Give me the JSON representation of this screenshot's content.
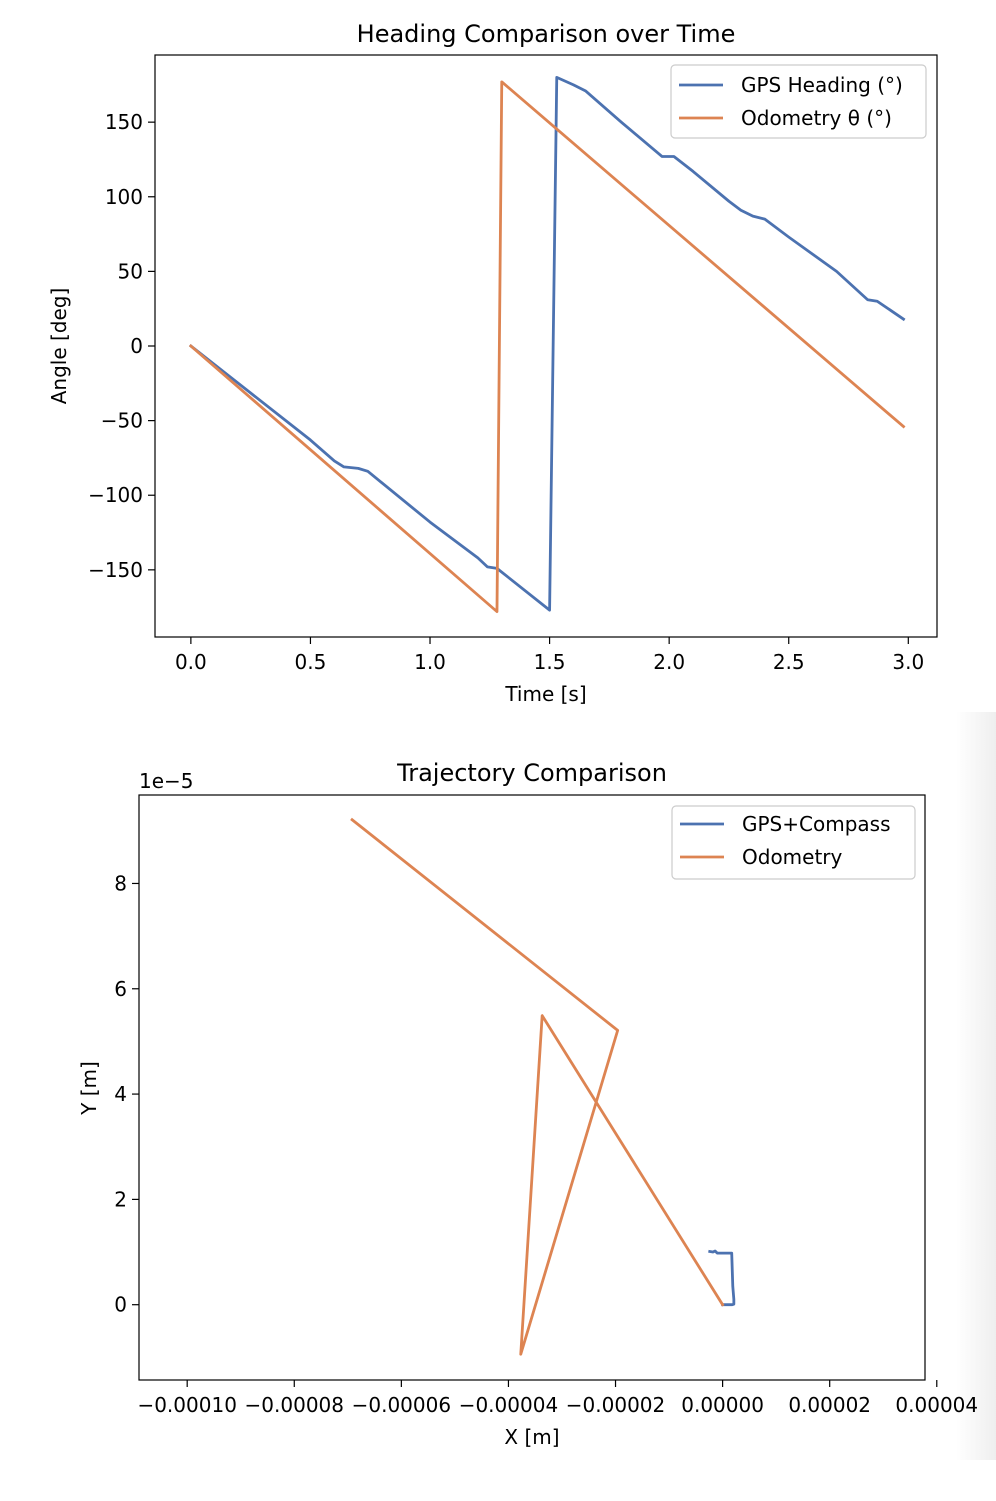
{
  "chart_data": [
    {
      "type": "line",
      "title": "Heading Comparison over Time",
      "xlabel": "Time [s]",
      "ylabel": "Angle [deg]",
      "xlim": [
        -0.15,
        3.12
      ],
      "ylim": [
        -195,
        195
      ],
      "xticks": [
        0.0,
        0.5,
        1.0,
        1.5,
        2.0,
        2.5,
        3.0
      ],
      "xtick_labels": [
        "0.0",
        "0.5",
        "1.0",
        "1.5",
        "2.0",
        "2.5",
        "3.0"
      ],
      "yticks": [
        150,
        100,
        50,
        0,
        -50,
        -100,
        -150
      ],
      "ytick_labels": [
        "150",
        "100",
        "50",
        "0",
        "−50",
        "−100",
        "−150"
      ],
      "grid": false,
      "legend": "upper right",
      "series": [
        {
          "name": "GPS Heading (°)",
          "color": "#4c72b0",
          "points": [
            [
              0.0,
              0
            ],
            [
              0.5,
              -63
            ],
            [
              0.6,
              -77
            ],
            [
              0.64,
              -81
            ],
            [
              0.7,
              -82
            ],
            [
              0.74,
              -84
            ],
            [
              1.0,
              -118
            ],
            [
              1.2,
              -142
            ],
            [
              1.24,
              -148
            ],
            [
              1.28,
              -149
            ],
            [
              1.5,
              -177
            ],
            [
              1.53,
              180
            ],
            [
              1.6,
              175
            ],
            [
              1.65,
              171
            ],
            [
              1.8,
              150
            ],
            [
              1.97,
              127
            ],
            [
              2.02,
              127
            ],
            [
              2.1,
              117
            ],
            [
              2.25,
              97
            ],
            [
              2.3,
              91
            ],
            [
              2.35,
              87
            ],
            [
              2.4,
              85
            ],
            [
              2.5,
              73
            ],
            [
              2.7,
              50
            ],
            [
              2.83,
              31
            ],
            [
              2.87,
              30
            ],
            [
              2.98,
              18
            ]
          ]
        },
        {
          "name": "Odometry θ (°)",
          "color": "#dd8452",
          "points": [
            [
              0.0,
              0
            ],
            [
              1.28,
              -178
            ],
            [
              1.3,
              177
            ],
            [
              2.98,
              -54
            ]
          ]
        }
      ]
    },
    {
      "type": "line",
      "title": "Trajectory Comparison",
      "xlabel": "X [m]",
      "ylabel": "Y [m]",
      "offset_text": "1e−5",
      "xlim": [
        -0.000109,
        3.78e-05
      ],
      "ylim": [
        -1.43e-05,
        9.68e-05
      ],
      "xticks": [
        -0.0001,
        -8e-05,
        -6e-05,
        -4e-05,
        -2e-05,
        0.0,
        2e-05,
        4e-05
      ],
      "xtick_labels": [
        "−0.00010",
        "−0.00008",
        "−0.00006",
        "−0.00004",
        "−0.00002",
        "0.00000",
        "0.00002",
        "0.00004"
      ],
      "yticks": [
        8e-05,
        6e-05,
        4e-05,
        2e-05,
        0.0
      ],
      "ytick_labels": [
        "8",
        "6",
        "4",
        "2",
        "0"
      ],
      "grid": false,
      "legend": "upper right",
      "series": [
        {
          "name": "GPS+Compass",
          "color": "#4c72b0",
          "points": [
            [
              -2.4e-06,
              1.01e-05
            ],
            [
              -1.8e-06,
              1e-05
            ],
            [
              -1.4e-06,
              1.02e-05
            ],
            [
              -1e-06,
              9.8e-06
            ],
            [
              1.7e-06,
              9.8e-06
            ],
            [
              1.9e-06,
              3.5e-06
            ],
            [
              2.1e-06,
              1e-06
            ],
            [
              2.1e-06,
              1e-07
            ],
            [
              1.8e-06,
              0.0
            ],
            [
              0.0,
              0.0
            ]
          ]
        },
        {
          "name": "Odometry",
          "color": "#dd8452",
          "points": [
            [
              0.0,
              0.0
            ],
            [
              -3.37e-05,
              5.49e-05
            ],
            [
              -3.77e-05,
              -9.4e-06
            ],
            [
              -1.96e-05,
              5.21e-05
            ],
            [
              -6.92e-05,
              9.21e-05
            ]
          ]
        }
      ]
    }
  ]
}
